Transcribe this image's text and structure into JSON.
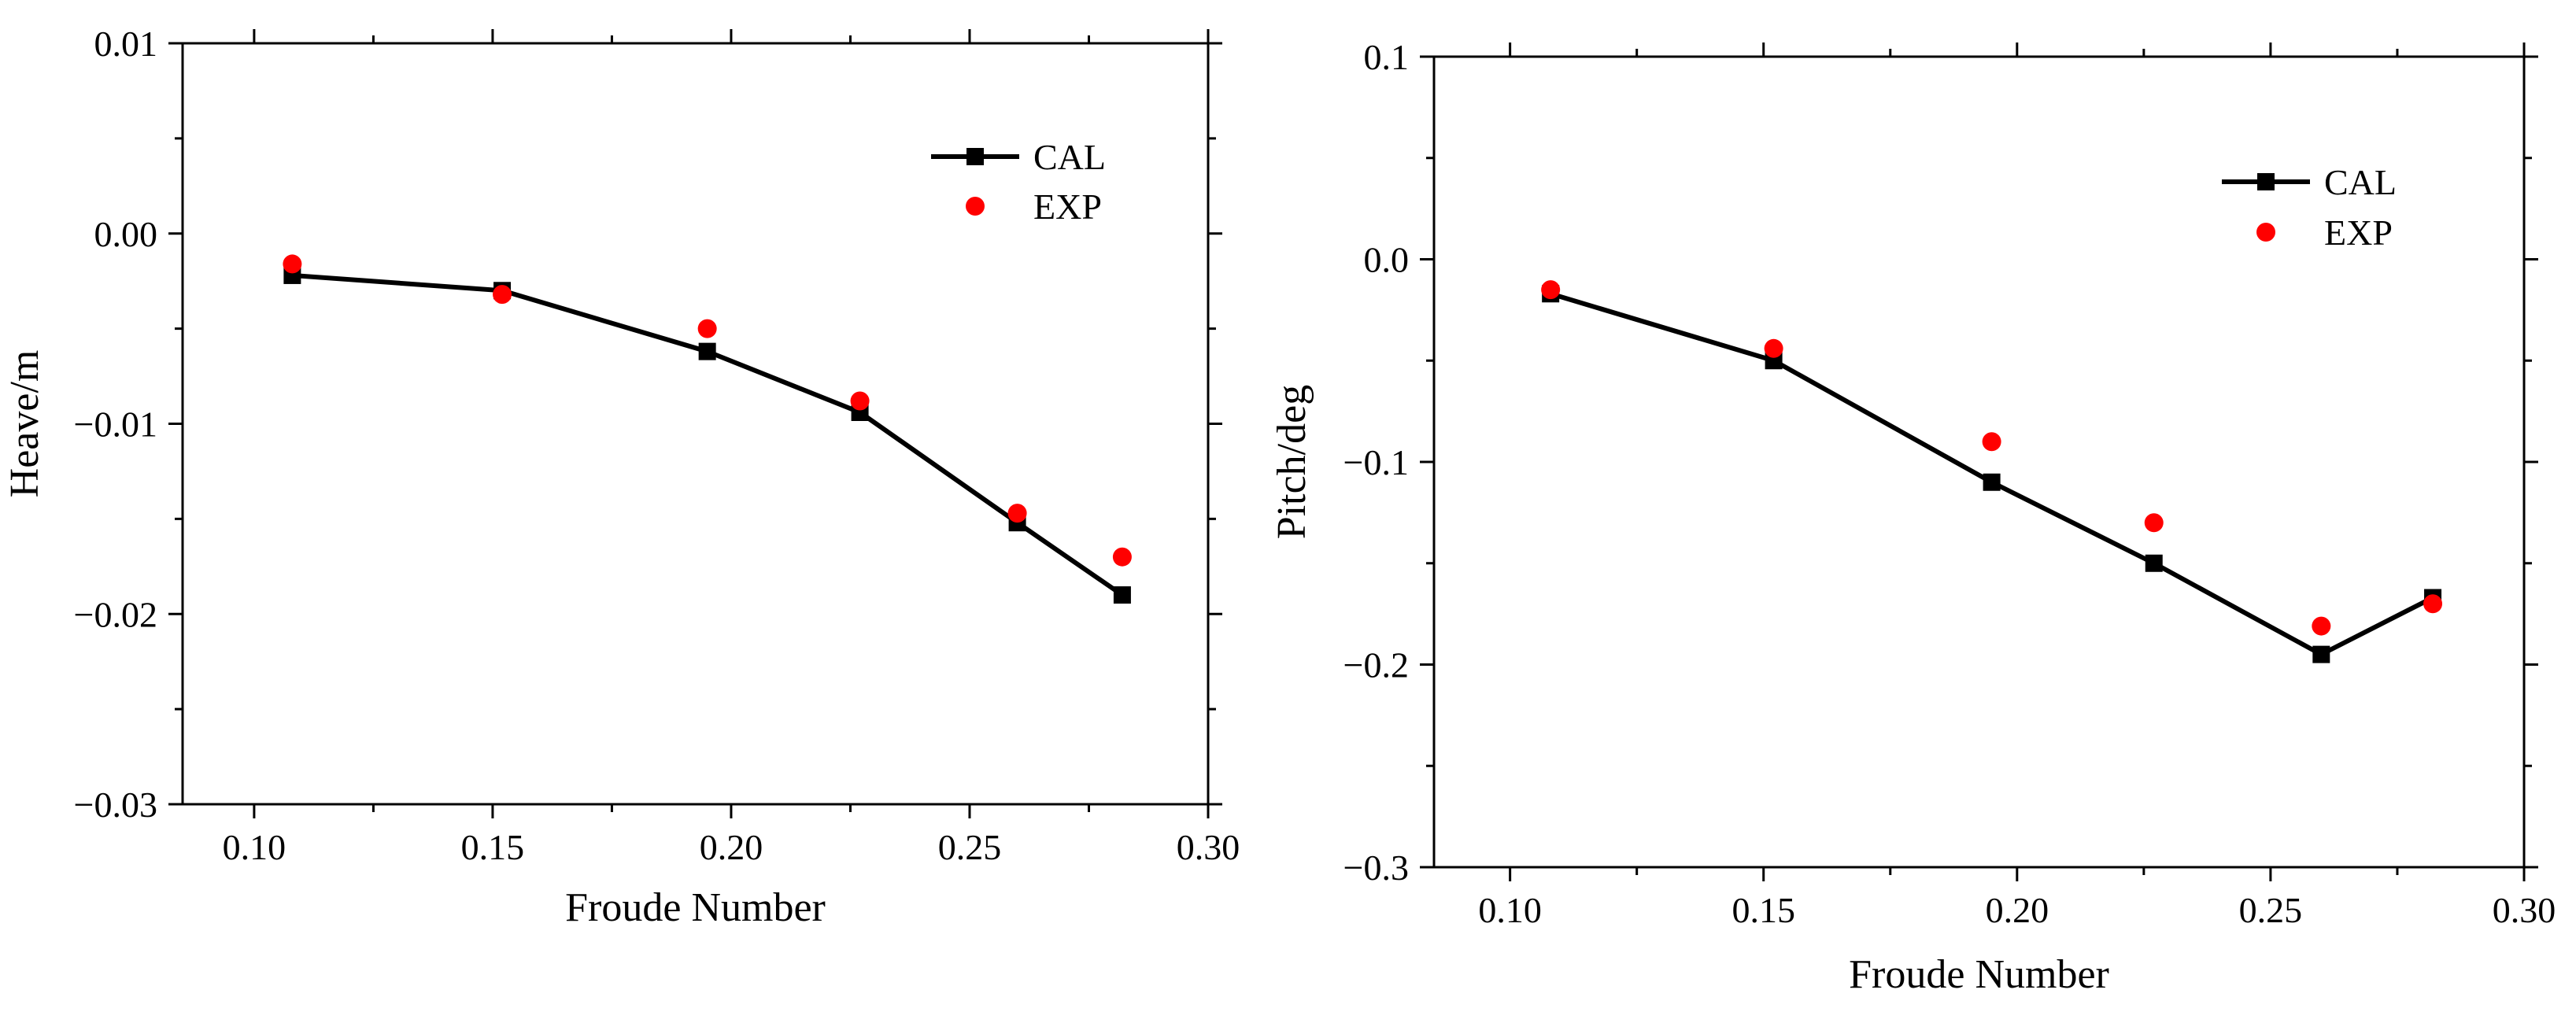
{
  "chart_data": [
    {
      "id": "heave",
      "type": "line",
      "title": "",
      "xlabel": "Froude Number",
      "ylabel": "Heave/m",
      "xlim": [
        0.085,
        0.3
      ],
      "ylim": [
        -0.03,
        0.01
      ],
      "xticks": [
        0.1,
        0.15,
        0.2,
        0.25,
        0.3
      ],
      "xtick_labels": [
        "0.10",
        "0.15",
        "0.20",
        "0.25",
        "0.30"
      ],
      "yticks": [
        -0.03,
        -0.02,
        -0.01,
        0.0,
        0.01
      ],
      "ytick_labels": [
        "−0.03",
        "−0.02",
        "−0.01",
        "0.00",
        "0.01"
      ],
      "legend_position": "top-right",
      "series": [
        {
          "name": "CAL",
          "style": "line-square",
          "color": "#000000",
          "x": [
            0.108,
            0.152,
            0.195,
            0.227,
            0.26,
            0.282
          ],
          "y": [
            -0.0022,
            -0.003,
            -0.0062,
            -0.0094,
            -0.0152,
            -0.019
          ]
        },
        {
          "name": "EXP",
          "style": "circle",
          "color": "#ff0000",
          "x": [
            0.108,
            0.152,
            0.195,
            0.227,
            0.26,
            0.282
          ],
          "y": [
            -0.0016,
            -0.0032,
            -0.005,
            -0.0088,
            -0.0147,
            -0.017
          ]
        }
      ]
    },
    {
      "id": "pitch",
      "type": "line",
      "title": "",
      "xlabel": "Froude Number",
      "ylabel": "Pitch/deg",
      "xlim": [
        0.085,
        0.3
      ],
      "ylim": [
        -0.3,
        0.1
      ],
      "xticks": [
        0.1,
        0.15,
        0.2,
        0.25,
        0.3
      ],
      "xtick_labels": [
        "0.10",
        "0.15",
        "0.20",
        "0.25",
        "0.30"
      ],
      "yticks": [
        -0.3,
        -0.2,
        -0.1,
        0.0,
        0.1
      ],
      "ytick_labels": [
        "−0.3",
        "−0.2",
        "−0.1",
        "0.0",
        "0.1"
      ],
      "legend_position": "top-right",
      "series": [
        {
          "name": "CAL",
          "style": "line-square",
          "color": "#000000",
          "x": [
            0.108,
            0.152,
            0.195,
            0.227,
            0.26,
            0.282
          ],
          "y": [
            -0.017,
            -0.05,
            -0.11,
            -0.15,
            -0.195,
            -0.167
          ]
        },
        {
          "name": "EXP",
          "style": "circle",
          "color": "#ff0000",
          "x": [
            0.108,
            0.152,
            0.195,
            0.227,
            0.26,
            0.282
          ],
          "y": [
            -0.015,
            -0.044,
            -0.09,
            -0.13,
            -0.181,
            -0.17
          ]
        }
      ]
    }
  ]
}
